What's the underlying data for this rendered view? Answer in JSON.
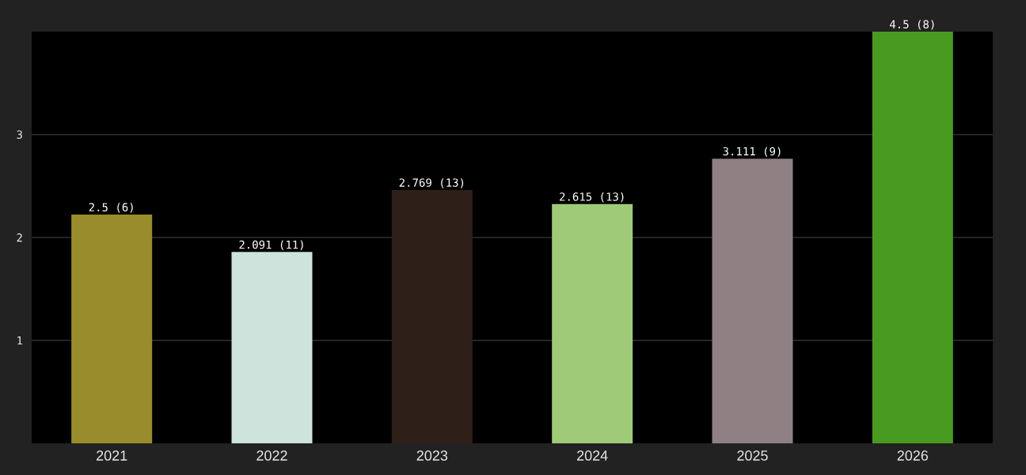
{
  "chart_data": {
    "type": "bar",
    "categories": [
      "2021",
      "2022",
      "2023",
      "2024",
      "2025",
      "2026"
    ],
    "values": [
      2.5,
      2.091,
      2.769,
      2.615,
      3.111,
      4.5
    ],
    "colors": [
      "#998c2c",
      "#cde3dc",
      "#2f1f19",
      "#9fcb78",
      "#8e8083",
      "#499a21"
    ],
    "value_labels": [
      "2.5 (6)",
      "2.091 (11)",
      "2.769 (13)",
      "2.615 (13)",
      "3.111 (9)",
      "4.5 (8)"
    ],
    "ylim": [
      0,
      4.5
    ],
    "yticks": [
      {
        "value": 1.125,
        "label": "1"
      },
      {
        "value": 2.25,
        "label": "2"
      },
      {
        "value": 3.375,
        "label": "3"
      }
    ],
    "grid": "y"
  }
}
